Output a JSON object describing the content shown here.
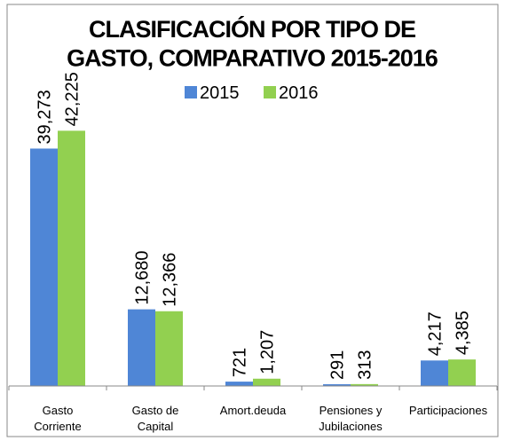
{
  "chart_data": {
    "type": "bar",
    "title": "CLASIFICACIÓN POR TIPO DE\nGASTO, COMPARATIVO 2015-2016",
    "categories": [
      "Gasto\nCorriente",
      "Gasto de\nCapital",
      "Amort.deuda",
      "Pensiones y\nJubilaciones",
      "Participaciones"
    ],
    "series": [
      {
        "name": "2015",
        "color": "#4f86d6",
        "values": [
          39273,
          12680,
          721,
          291,
          4217
        ],
        "value_labels": [
          "39,273",
          "12,680",
          "721",
          "291",
          "4,217"
        ]
      },
      {
        "name": "2016",
        "color": "#92d050",
        "values": [
          42225,
          12366,
          1207,
          313,
          4385
        ],
        "value_labels": [
          "42,225",
          "12,366",
          "1,207",
          "313",
          "4,385"
        ]
      }
    ],
    "ylim": [
      0,
      48000
    ]
  }
}
